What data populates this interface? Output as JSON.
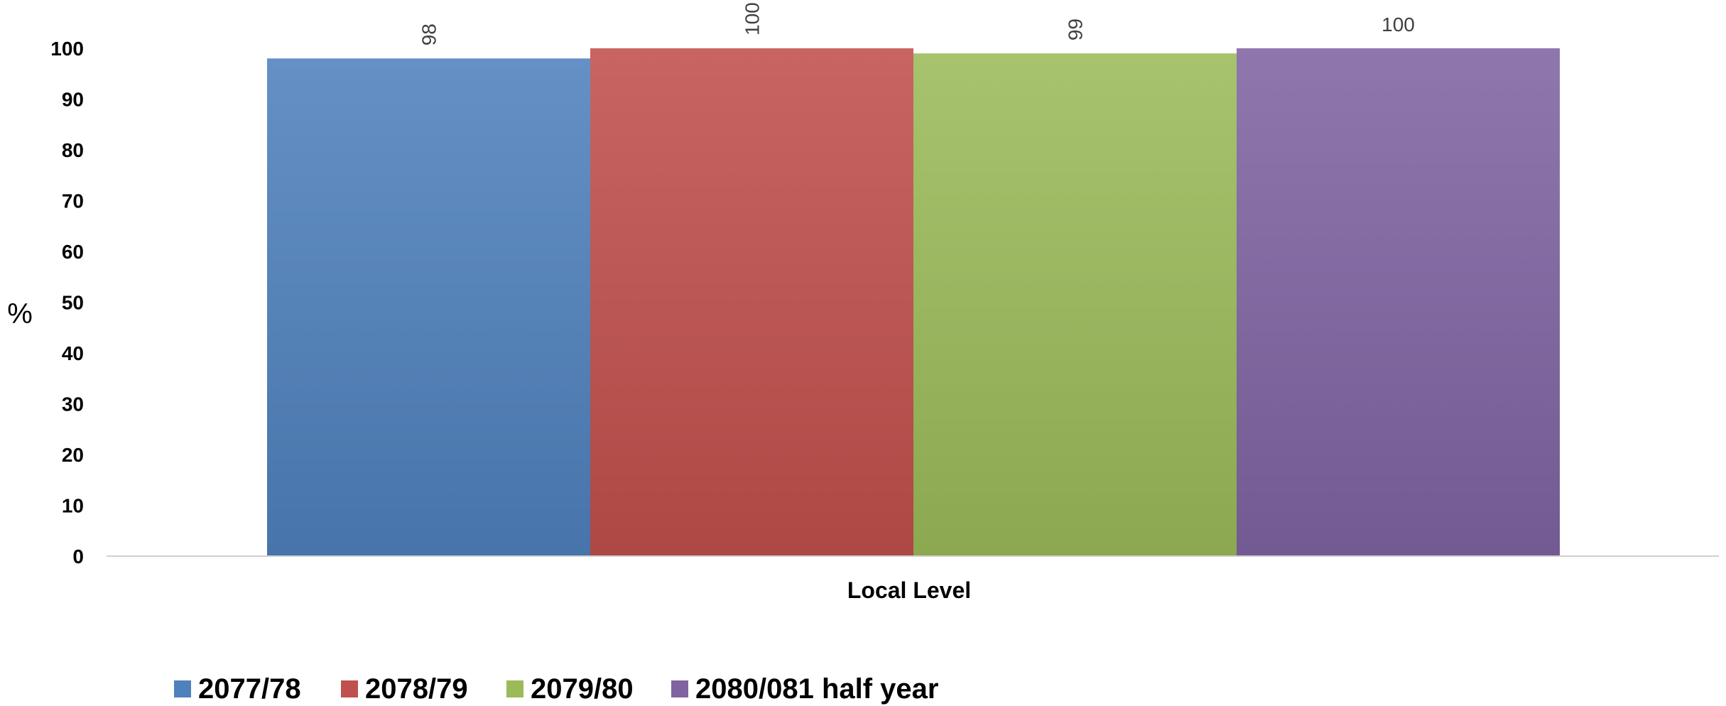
{
  "chart_data": {
    "type": "bar",
    "categories": [
      "Local Level"
    ],
    "series": [
      {
        "name": "2077/78",
        "values": [
          98
        ],
        "color": "#4f81bd"
      },
      {
        "name": "2078/79",
        "values": [
          100
        ],
        "color": "#c0504d"
      },
      {
        "name": "2079/80",
        "values": [
          99
        ],
        "color": "#9bbb59"
      },
      {
        "name": "2080/081 half year",
        "values": [
          100
        ],
        "color": "#8064a2"
      }
    ],
    "data_labels": [
      "98",
      "100",
      "99",
      "100"
    ],
    "title": "",
    "xlabel": "",
    "ylabel": "%",
    "ylim": [
      0,
      100
    ],
    "yticks": [
      0,
      10,
      20,
      30,
      40,
      50,
      60,
      70,
      80,
      90,
      100
    ],
    "grid": false,
    "legend_position": "bottom"
  }
}
